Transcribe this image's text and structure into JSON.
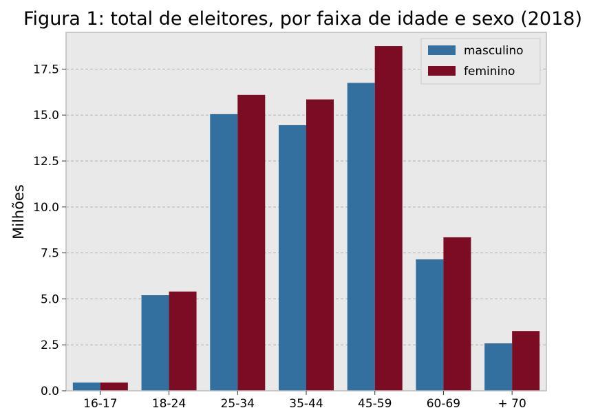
{
  "chart_data": {
    "type": "bar",
    "title": "Figura 1: total de eleitores, por faixa de idade e sexo (2018)",
    "xlabel": "",
    "ylabel": "Milhões",
    "categories": [
      "16-17",
      "18-24",
      "25-34",
      "35-44",
      "45-59",
      "60-69",
      "+ 70"
    ],
    "series": [
      {
        "name": "masculino",
        "color": "#336f9f",
        "values": [
          0.45,
          5.2,
          15.05,
          14.45,
          16.75,
          7.15,
          2.58
        ]
      },
      {
        "name": "feminino",
        "color": "#7b0c23",
        "values": [
          0.45,
          5.4,
          16.1,
          15.85,
          18.75,
          8.35,
          3.25
        ]
      }
    ],
    "yticks": [
      "0.0",
      "2.5",
      "5.0",
      "7.5",
      "10.0",
      "12.5",
      "15.0",
      "17.5"
    ],
    "ylim": [
      0,
      19.5
    ],
    "grid": true,
    "legend": "top-right",
    "background": "#e9e9e9"
  }
}
